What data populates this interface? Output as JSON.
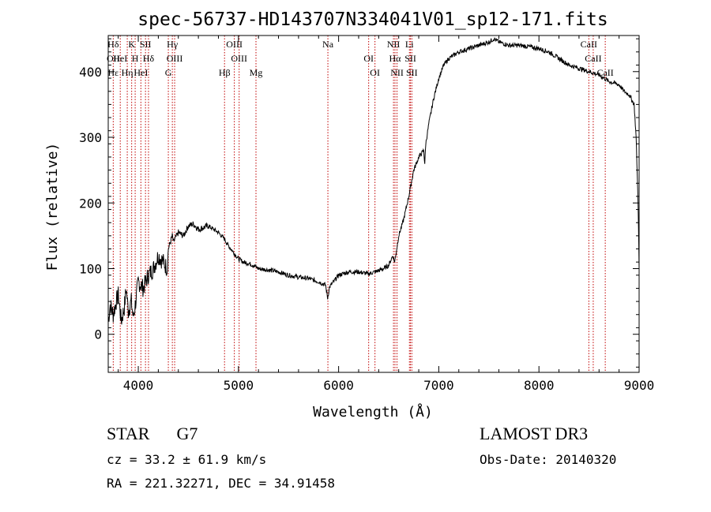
{
  "chart_data": {
    "type": "line",
    "title": "spec-56737-HD143707N334041V01_sp12-171.fits",
    "xlabel": "Wavelength (Å)",
    "ylabel": "Flux (relative)",
    "xlim": [
      3700,
      9000
    ],
    "ylim": [
      -58,
      455
    ],
    "xticks": [
      4000,
      5000,
      6000,
      7000,
      8000,
      9000
    ],
    "yticks": [
      0,
      100,
      200,
      300,
      400
    ],
    "series": [
      {
        "name": "flux",
        "x": [
          3700,
          3720,
          3750,
          3780,
          3800,
          3830,
          3860,
          3880,
          3900,
          3930,
          3950,
          3970,
          4000,
          4050,
          4100,
          4150,
          4200,
          4250,
          4290,
          4300,
          4340,
          4350,
          4400,
          4450,
          4500,
          4550,
          4600,
          4700,
          4800,
          4860,
          4900,
          4950,
          5000,
          5050,
          5100,
          5150,
          5200,
          5300,
          5400,
          5500,
          5600,
          5700,
          5800,
          5870,
          5890,
          5910,
          5950,
          6000,
          6100,
          6200,
          6300,
          6400,
          6450,
          6500,
          6540,
          6560,
          6580,
          6600,
          6650,
          6700,
          6750,
          6800,
          6850,
          6860,
          6870,
          6900,
          6950,
          7000,
          7050,
          7100,
          7200,
          7300,
          7400,
          7500,
          7550,
          7600,
          7700,
          7800,
          7900,
          8000,
          8100,
          8200,
          8300,
          8400,
          8500,
          8600,
          8700,
          8800,
          8850,
          8900,
          8950,
          8970,
          8990,
          9000
        ],
        "y": [
          20,
          45,
          30,
          50,
          60,
          20,
          40,
          70,
          35,
          50,
          25,
          45,
          80,
          70,
          90,
          100,
          120,
          110,
          100,
          130,
          150,
          140,
          155,
          150,
          165,
          168,
          160,
          165,
          155,
          145,
          135,
          125,
          115,
          110,
          108,
          105,
          100,
          98,
          95,
          90,
          87,
          85,
          80,
          75,
          55,
          72,
          80,
          90,
          95,
          95,
          92,
          97,
          100,
          105,
          120,
          110,
          130,
          150,
          175,
          210,
          250,
          270,
          280,
          260,
          290,
          320,
          360,
          390,
          410,
          420,
          430,
          435,
          440,
          445,
          450,
          445,
          440,
          440,
          438,
          435,
          430,
          420,
          410,
          405,
          400,
          395,
          385,
          380,
          370,
          365,
          350,
          300,
          200,
          100
        ]
      }
    ],
    "lines": [
      {
        "x": 3750,
        "labels": [
          "Hδ",
          "OII",
          "Hε"
        ]
      },
      {
        "x": 3820,
        "labels": [
          "HeI"
        ]
      },
      {
        "x": 3890,
        "labels": [
          "Hη"
        ]
      },
      {
        "x": 3934,
        "labels": [
          "K"
        ]
      },
      {
        "x": 3969,
        "labels": [
          "H"
        ]
      },
      {
        "x": 4026,
        "labels": [
          "HeI"
        ]
      },
      {
        "x": 4072,
        "labels": [
          "SII"
        ]
      },
      {
        "x": 4102,
        "labels": [
          "Hδ"
        ]
      },
      {
        "x": 4300,
        "labels": [
          "G"
        ]
      },
      {
        "x": 4340,
        "labels": [
          "Hγ"
        ]
      },
      {
        "x": 4363,
        "labels": [
          "OIII"
        ]
      },
      {
        "x": 4861,
        "labels": [
          "Hβ"
        ]
      },
      {
        "x": 4959,
        "labels": [
          "OIII"
        ]
      },
      {
        "x": 5007,
        "labels": [
          "OIII"
        ]
      },
      {
        "x": 5175,
        "labels": [
          "Mg"
        ]
      },
      {
        "x": 5893,
        "labels": [
          "Na"
        ]
      },
      {
        "x": 6300,
        "labels": [
          "OI"
        ]
      },
      {
        "x": 6363,
        "labels": [
          "OI"
        ]
      },
      {
        "x": 6548,
        "labels": [
          "NII"
        ]
      },
      {
        "x": 6563,
        "labels": [
          "Hα"
        ]
      },
      {
        "x": 6583,
        "labels": [
          "NII"
        ]
      },
      {
        "x": 6707,
        "labels": [
          "Li"
        ]
      },
      {
        "x": 6717,
        "labels": [
          "SII"
        ]
      },
      {
        "x": 6731,
        "labels": [
          "SII"
        ]
      },
      {
        "x": 8498,
        "labels": [
          "CaII"
        ]
      },
      {
        "x": 8542,
        "labels": [
          "CaII"
        ]
      },
      {
        "x": 8662,
        "labels": [
          "CaII"
        ]
      }
    ]
  },
  "info": {
    "object_type": "STAR",
    "subclass": "G7",
    "cz": "cz = 33.2 ± 61.9 km/s",
    "coords": "RA = 221.32271, DEC =  34.91458",
    "survey": "LAMOST DR3",
    "obs_date": "Obs-Date: 20140320"
  },
  "colors": {
    "spectrum": "#000000",
    "line_marker": "#c00000"
  }
}
